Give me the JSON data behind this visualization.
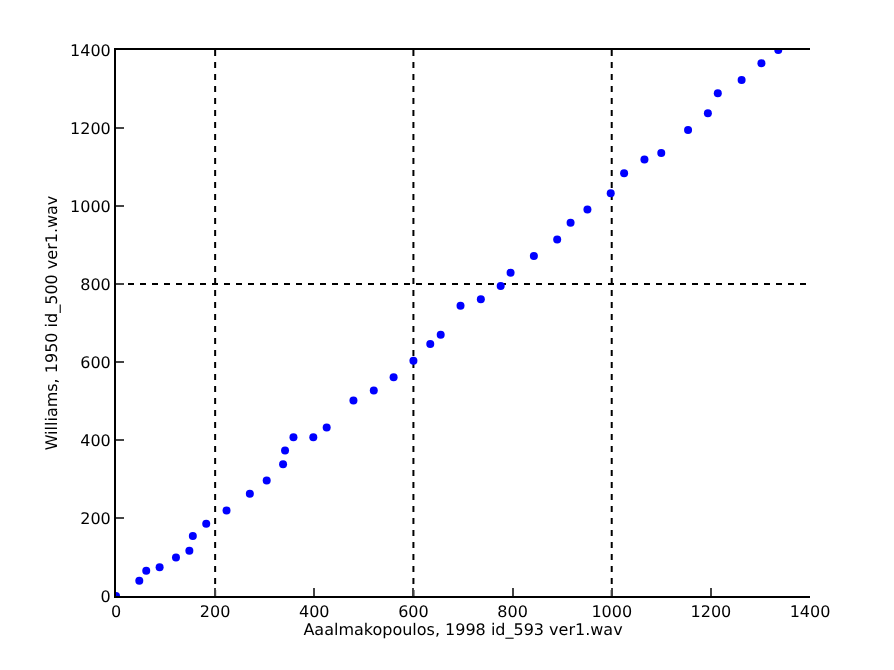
{
  "chart_data": {
    "type": "scatter",
    "xlabel": "Aaalmakopoulos, 1998 id_593 ver1.wav",
    "ylabel": "Williams, 1950 id_500 ver1.wav",
    "x": [
      0,
      47,
      61,
      88,
      121,
      148,
      155,
      182,
      223,
      270,
      304,
      337,
      341,
      358,
      398,
      425,
      479,
      520,
      560,
      600,
      634,
      655,
      695,
      736,
      776,
      796,
      843,
      890,
      917,
      951,
      998,
      1025,
      1066,
      1100,
      1154,
      1194,
      1214,
      1262,
      1302,
      1336
    ],
    "series": [
      {
        "color": "#0000ff",
        "values": [
          0,
          39,
          65,
          74,
          99,
          116,
          154,
          185,
          219,
          262,
          296,
          338,
          373,
          407,
          407,
          432,
          501,
          527,
          561,
          603,
          646,
          670,
          744,
          761,
          795,
          829,
          872,
          914,
          957,
          991,
          1033,
          1084,
          1119,
          1136,
          1195,
          1238,
          1289,
          1323,
          1366,
          1400
        ]
      }
    ],
    "xlim": [
      0,
      1400
    ],
    "ylim": [
      0,
      1400
    ],
    "xticks": [
      0,
      200,
      {
        "value": 400,
        "label": "400"
      },
      600,
      800,
      1000,
      1200,
      1400
    ],
    "yticks": [
      0,
      200,
      400,
      600,
      800,
      1000,
      1200,
      1400
    ],
    "marker": "circle",
    "ref_lines": [
      {
        "axis": "x",
        "value": 200,
        "line_style": "dotted",
        "color": "#000000"
      },
      {
        "axis": "x",
        "value": 600,
        "line_style": "dotted",
        "color": "#000000"
      },
      {
        "axis": "x",
        "value": 1000,
        "line_style": "dotted",
        "color": "#000000"
      },
      {
        "axis": "y",
        "value": 800,
        "line_style": "dotted",
        "color": "#000000"
      }
    ]
  }
}
